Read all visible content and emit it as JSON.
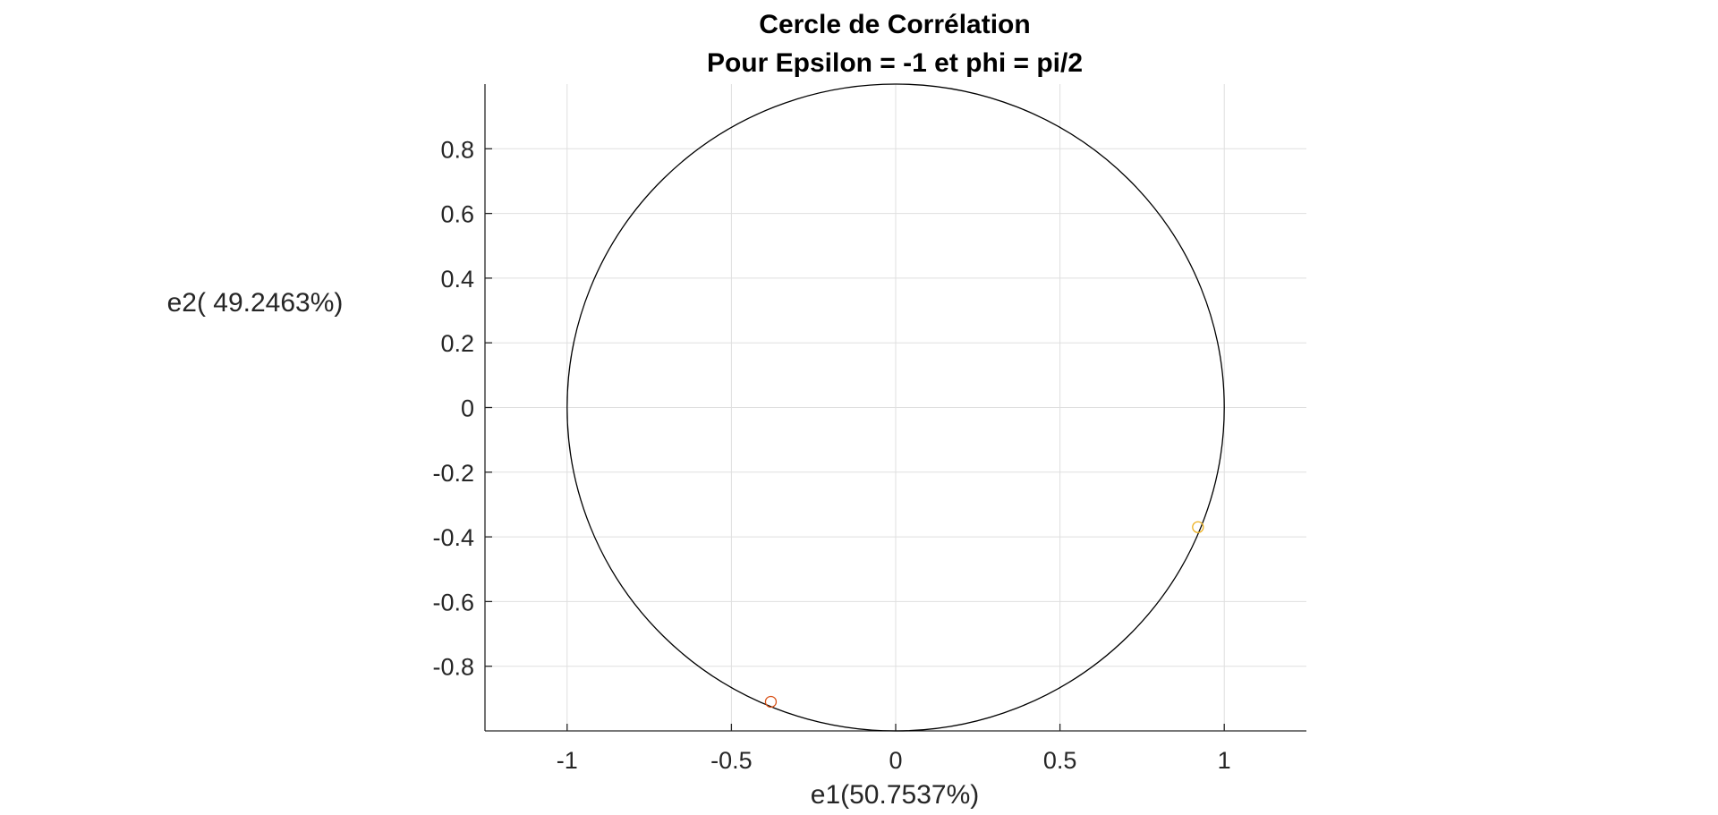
{
  "chart_data": {
    "type": "scatter",
    "title": "Cercle de Corrélation",
    "subtitle": "Pour Epsilon = -1 et phi = pi/2",
    "xlabel": "e1(50.7537%)",
    "ylabel": "e2( 49.2463%)",
    "xlim": [
      -1.25,
      1.25
    ],
    "ylim": [
      -1,
      1
    ],
    "grid": true,
    "x_ticks": [
      -1,
      -0.5,
      0,
      0.5,
      1
    ],
    "x_tick_labels": [
      "-1",
      "-0.5",
      "0",
      "0.5",
      "1"
    ],
    "y_ticks": [
      -0.8,
      -0.6,
      -0.4,
      -0.2,
      0,
      0.2,
      0.4,
      0.6,
      0.8
    ],
    "y_tick_labels": [
      "-0.8",
      "-0.6",
      "-0.4",
      "-0.2",
      "0",
      "0.2",
      "0.4",
      "0.6",
      "0.8"
    ],
    "unit_circle": {
      "center": [
        0,
        0
      ],
      "radius": 1,
      "color": "#000000"
    },
    "points": [
      {
        "x": -0.38,
        "y": -0.91,
        "color": "#D95319"
      },
      {
        "x": 0.92,
        "y": -0.37,
        "color": "#EDB120"
      }
    ],
    "marker": "circle-open"
  }
}
